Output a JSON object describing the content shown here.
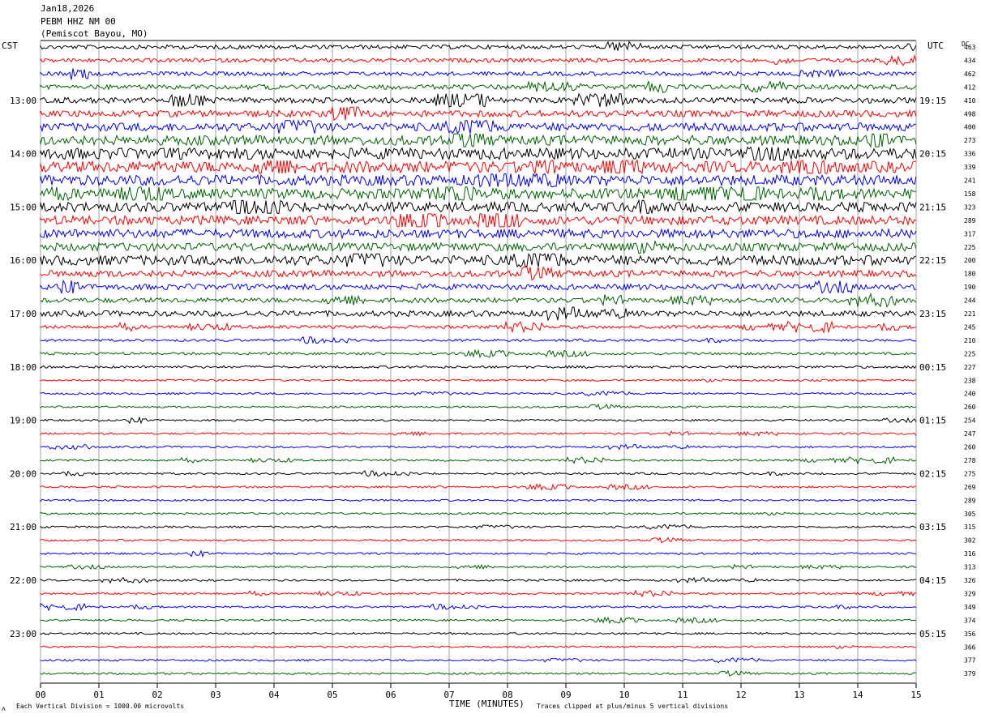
{
  "header": {
    "date": "Jan18,2026",
    "station": "PEBM HHZ NM 00",
    "location": "(Pemiscot Bayou, MO)"
  },
  "left_tz": "CST",
  "right_tz": "UTC",
  "dc_label": "DC",
  "footer": {
    "scale_note": "Each Vertical Division = 1000.00 microvolts",
    "clip_note": "Traces clipped at plus/minus 5 vertical divisions",
    "corner_mark": "ʌ"
  },
  "colors": {
    "black": "#000000",
    "red": "#ff0000",
    "blue": "#0000ff",
    "green": "#006400",
    "grid": "#a0a0a0"
  },
  "chart_data": {
    "type": "line",
    "xlabel": "TIME (MINUTES)",
    "x_ticks": [
      "00",
      "01",
      "02",
      "03",
      "04",
      "05",
      "06",
      "07",
      "08",
      "09",
      "10",
      "11",
      "12",
      "13",
      "14",
      "15"
    ],
    "xlim": [
      0,
      15
    ],
    "left_hour_labels": [
      "13:00",
      "14:00",
      "15:00",
      "16:00",
      "17:00",
      "18:00",
      "19:00",
      "20:00",
      "21:00",
      "22:00",
      "23:00"
    ],
    "right_hour_labels": [
      "19:15",
      "20:15",
      "21:15",
      "22:15",
      "23:15",
      "00:15",
      "01:15",
      "02:15",
      "03:15",
      "04:15",
      "05:15"
    ],
    "trace_color_cycle": [
      "black",
      "red",
      "blue",
      "green"
    ],
    "trace_count": 48,
    "dc_offsets": [
      463,
      434,
      462,
      412,
      410,
      498,
      400,
      273,
      336,
      339,
      241,
      158,
      323,
      289,
      317,
      225,
      200,
      180,
      190,
      244,
      221,
      245,
      210,
      225,
      227,
      238,
      240,
      260,
      254,
      247,
      260,
      278,
      275,
      269,
      289,
      305,
      315,
      302,
      316,
      313,
      326,
      329,
      349,
      374,
      356,
      366,
      377,
      379
    ],
    "noise_amplitude": [
      2.5,
      2.5,
      2.5,
      3,
      3.5,
      4,
      5,
      6,
      7,
      7,
      6.5,
      6.5,
      6,
      5.5,
      5.5,
      5,
      6,
      4,
      3.5,
      3,
      3.5,
      2,
      1.5,
      1.5,
      1.5,
      1.2,
      1.2,
      1.2,
      1.2,
      1.2,
      1.2,
      1.2,
      1.2,
      1.2,
      1.2,
      1.2,
      1.2,
      1.2,
      1.2,
      1.2,
      1.2,
      1.2,
      1.2,
      1.2,
      1.2,
      1.2,
      1.2,
      1.2
    ]
  }
}
